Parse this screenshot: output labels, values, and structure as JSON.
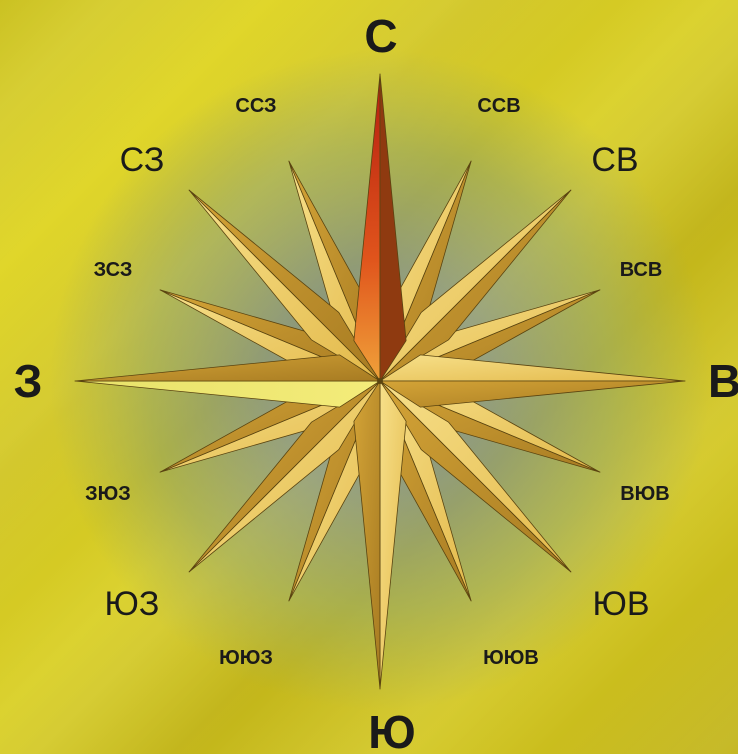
{
  "compass": {
    "cardinal": {
      "north": "С",
      "south": "Ю",
      "west": "З",
      "east": "В"
    },
    "intercardinal": {
      "northwest": "СЗ",
      "northeast": "СВ",
      "southwest": "ЮЗ",
      "southeast": "ЮВ"
    },
    "secondary": {
      "nnw": "ССЗ",
      "nne": "ССВ",
      "wnw": "ЗСЗ",
      "ene": "ВСВ",
      "wsw": "ЗЮЗ",
      "ese": "ВЮВ",
      "ssw": "ЮЮЗ",
      "sse": "ЮЮВ"
    }
  },
  "colors": {
    "north_point": "#d7391a",
    "star_gold": "#e5c04a",
    "star_shadow": "#a07a1e",
    "background": "#d6cd25"
  }
}
